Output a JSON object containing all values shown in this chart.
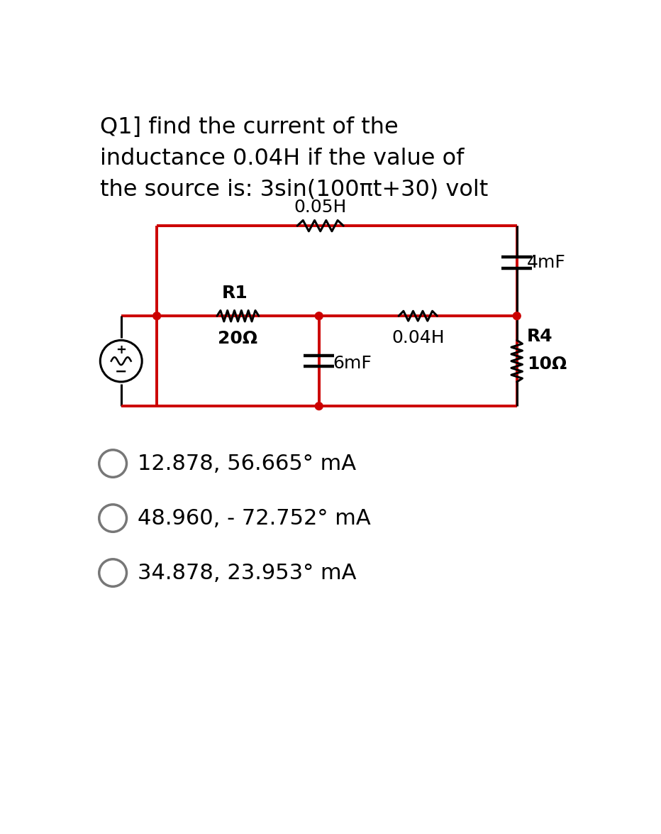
{
  "title_line1": "Q1] find the current of the",
  "title_line2": "inductance 0.04H if the value of",
  "title_line3": "the source is: 3sin(100πt+30) volt",
  "circuit_color": "#cc0000",
  "black": "#000000",
  "white": "#ffffff",
  "bg_color": "#ffffff",
  "choices": [
    "12.878, 56.665° mA",
    "48.960, - 72.752° mA",
    "34.878, 23.953° mA"
  ],
  "labels": {
    "L1": "0.05H",
    "L2": "0.04H",
    "R1_label": "R1",
    "R1_val": "20Ω",
    "C1": "6mF",
    "C2": "4mF",
    "R4_label": "R4",
    "R4_val": "10Ω"
  },
  "title_fontsize": 23,
  "choice_fontsize": 22,
  "label_fontsize": 18
}
